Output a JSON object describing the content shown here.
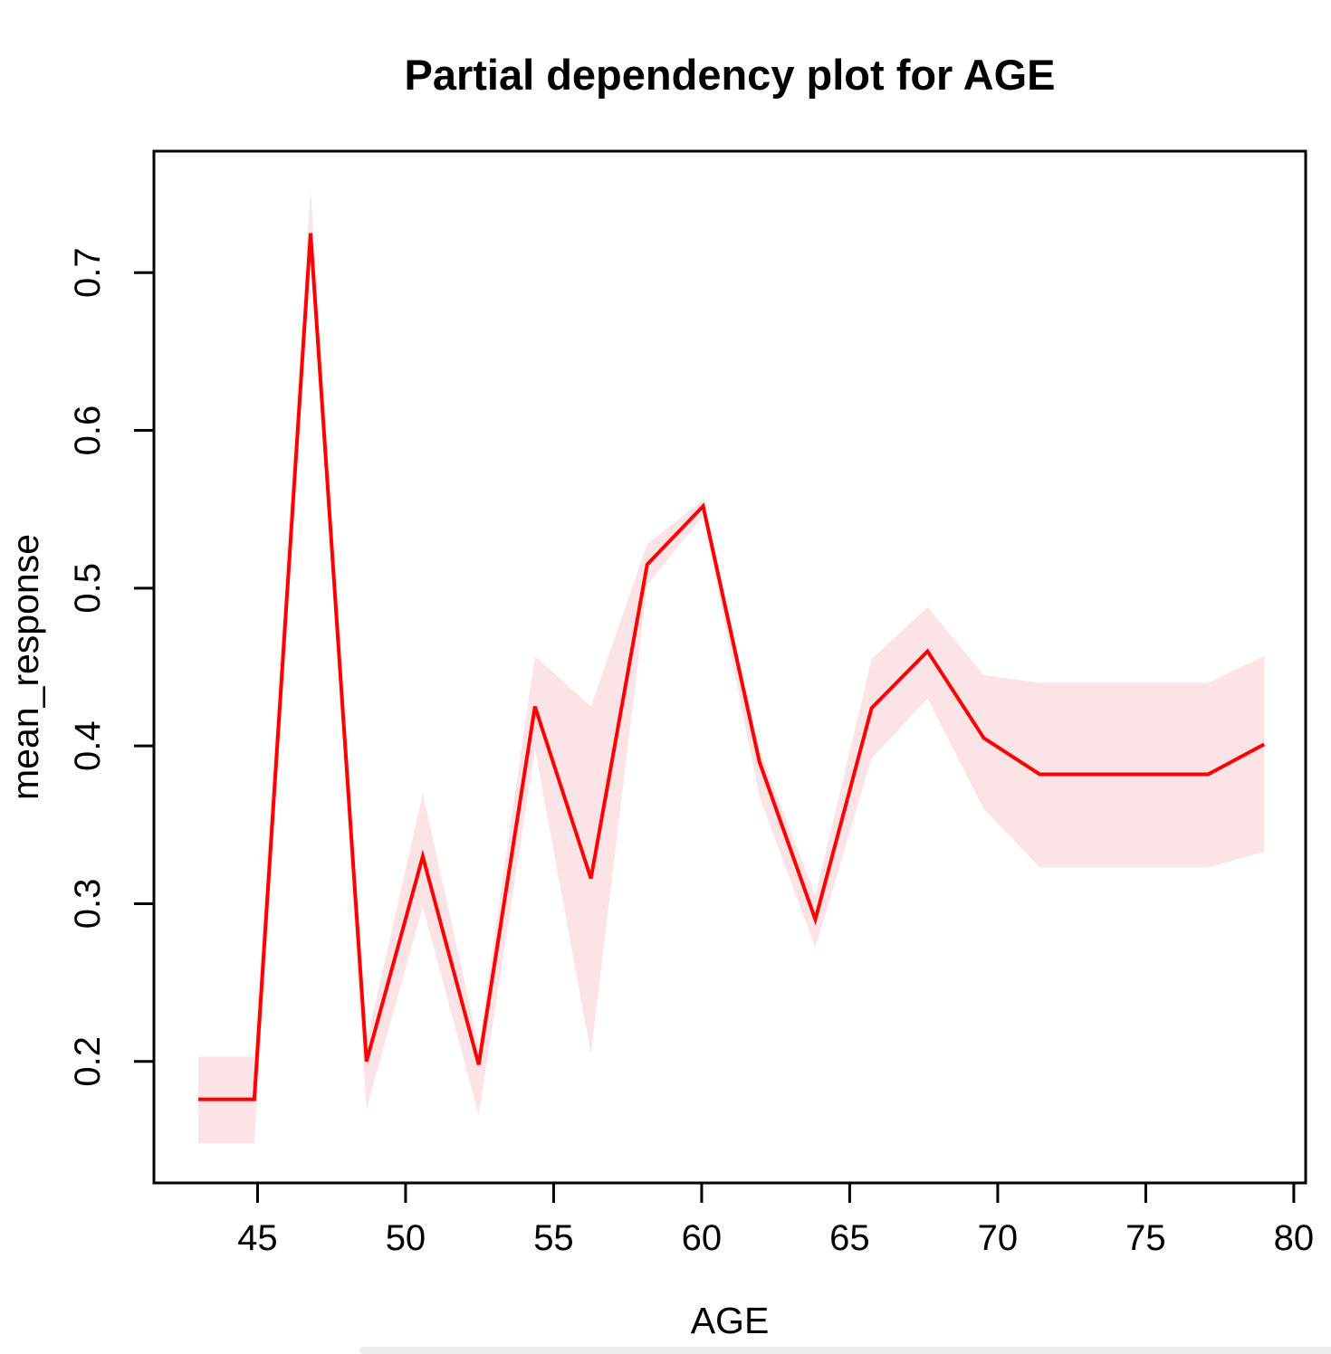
{
  "chart_data": {
    "type": "line",
    "title": "Partial dependency plot for AGE",
    "xlabel": "AGE",
    "ylabel": "mean_response",
    "x": [
      43.0,
      44.89,
      46.79,
      48.68,
      50.58,
      52.47,
      54.37,
      56.26,
      58.16,
      60.05,
      61.95,
      63.84,
      65.74,
      67.63,
      69.53,
      71.42,
      73.32,
      75.21,
      77.11,
      79.0
    ],
    "series": [
      {
        "name": "mean_response",
        "role": "line",
        "values": [
          0.176,
          0.176,
          0.725,
          0.2,
          0.33,
          0.198,
          0.425,
          0.316,
          0.515,
          0.552,
          0.39,
          0.29,
          0.424,
          0.46,
          0.405,
          0.382,
          0.382,
          0.382,
          0.382,
          0.401
        ]
      },
      {
        "name": "upper_bound",
        "role": "band-upper",
        "values": [
          0.203,
          0.203,
          0.752,
          0.212,
          0.37,
          0.21,
          0.457,
          0.425,
          0.528,
          0.556,
          0.398,
          0.305,
          0.455,
          0.488,
          0.445,
          0.44,
          0.44,
          0.44,
          0.44,
          0.457
        ]
      },
      {
        "name": "lower_bound",
        "role": "band-lower",
        "values": [
          0.148,
          0.148,
          0.716,
          0.17,
          0.298,
          0.166,
          0.398,
          0.205,
          0.502,
          0.546,
          0.368,
          0.272,
          0.392,
          0.43,
          0.36,
          0.323,
          0.323,
          0.323,
          0.323,
          0.333
        ]
      }
    ],
    "x_ticks": [
      45,
      50,
      55,
      60,
      65,
      70,
      75,
      80
    ],
    "y_ticks": [
      0.2,
      0.3,
      0.4,
      0.5,
      0.6,
      0.7
    ],
    "xlim": [
      41.5,
      80.4
    ],
    "ylim": [
      0.123,
      0.777
    ],
    "grid": false,
    "legend": "none",
    "line_color": "#FF0000",
    "band_color": "#FCE3E6",
    "axis_color": "#000000"
  }
}
